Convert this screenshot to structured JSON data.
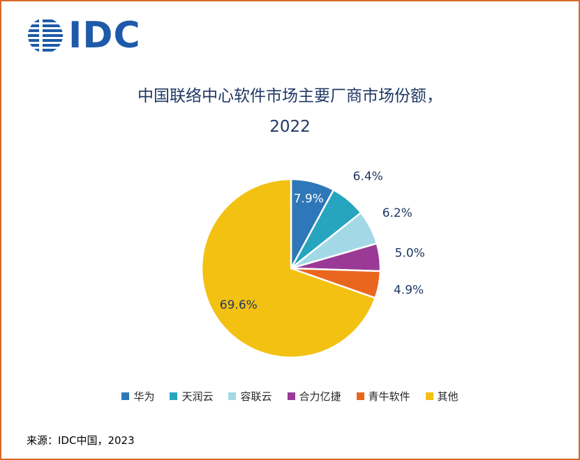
{
  "logo": {
    "text": "IDC",
    "color": "#1E5AA9"
  },
  "title": {
    "line1": "中国联络中心软件市场主要厂商市场份额，",
    "line2": "2022"
  },
  "source": "来源：IDC中国，2023",
  "colors": {
    "title_text": "#1F3864",
    "label_text": "#1F3864",
    "border": "#D96A29"
  },
  "chart_data": {
    "type": "pie",
    "title": "中国联络中心软件市场主要厂商市场份额，2022",
    "unit": "%",
    "legend_position": "bottom",
    "start_angle_deg": -90,
    "direction": "clockwise",
    "slices": [
      {
        "label": "华为",
        "value": 7.9,
        "display": "7.9%",
        "color": "#2E77B8",
        "label_placement": "inside",
        "label_factor": 0.8,
        "label_color": "#FFFFFF"
      },
      {
        "label": "天润云",
        "value": 6.4,
        "display": "6.4%",
        "color": "#27A5BF",
        "label_placement": "outside",
        "label_factor": 1.34,
        "label_color": "#1F3864"
      },
      {
        "label": "容联云",
        "value": 6.2,
        "display": "6.2%",
        "color": "#A3D9E6",
        "label_placement": "outside",
        "label_factor": 1.34,
        "label_color": "#1F3864"
      },
      {
        "label": "合力亿捷",
        "value": 5.0,
        "display": "5.0%",
        "color": "#9A3A96",
        "label_placement": "outside",
        "label_factor": 1.34,
        "label_color": "#1F3864"
      },
      {
        "label": "青牛软件",
        "value": 4.9,
        "display": "4.9%",
        "color": "#E9661E",
        "label_placement": "outside",
        "label_factor": 1.34,
        "label_color": "#1F3864"
      },
      {
        "label": "其他",
        "value": 69.6,
        "display": "69.6%",
        "color": "#F3C112",
        "label_placement": "inside",
        "label_factor": 0.72,
        "label_color": "#1F3864"
      }
    ]
  }
}
